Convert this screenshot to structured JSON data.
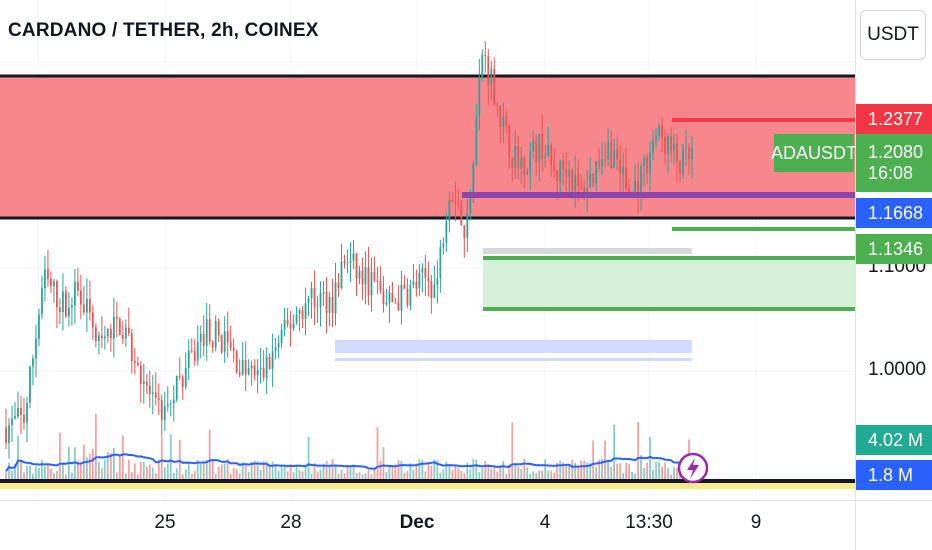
{
  "header": {
    "title": "CARDANO / TETHER, 2h, COINEX",
    "currency": "USDT"
  },
  "colors": {
    "up": "#26a69a",
    "down": "#ef5350",
    "resistance_zone": "#f7878c",
    "support_zone": "#d7f0d8",
    "purple": "#8e44ad",
    "volume_ma": "#2962ff",
    "price_green": "#4caf50",
    "price_red": "#f23645",
    "price_blue": "#2962ff",
    "volume_teal": "#22ab94"
  },
  "price_labels": {
    "top_red": "1.2377",
    "symbol": "ADAUSDT",
    "last": "1.2080",
    "countdown": "16:08",
    "blue": "1.1668",
    "green": "1.1346",
    "volume": "4.02 M",
    "volume_ma": "1.8 M"
  },
  "y_ticks": [
    "1.1000",
    "1.0000"
  ],
  "x_ticks": [
    "25",
    "28",
    "Dec",
    "4",
    "13:30",
    "9"
  ],
  "icons": {
    "lightning": "lightning-icon"
  },
  "chart_data": {
    "type": "candlestick",
    "title": "CARDANO / TETHER, 2h, COINEX",
    "symbol": "ADAUSDT",
    "quote": "USDT",
    "y_scale": "price",
    "y_ticks": [
      1.0,
      1.1
    ],
    "last_price": 1.208,
    "x_ticks": [
      "25",
      "28",
      "Dec",
      "4",
      "13:30",
      "9"
    ],
    "close_path": [
      [
        0,
        0.945
      ],
      [
        15,
        0.955
      ],
      [
        30,
        1.09
      ],
      [
        45,
        1.065
      ],
      [
        60,
        1.078
      ],
      [
        75,
        1.02
      ],
      [
        90,
        1.05
      ],
      [
        105,
        1.01
      ],
      [
        120,
        0.96
      ],
      [
        128,
        0.962
      ],
      [
        140,
        0.99
      ],
      [
        160,
        1.04
      ],
      [
        175,
        1.03
      ],
      [
        190,
        1.0
      ],
      [
        205,
        0.995
      ],
      [
        220,
        1.03
      ],
      [
        235,
        1.06
      ],
      [
        250,
        1.07
      ],
      [
        262,
        1.07
      ],
      [
        272,
        1.11
      ],
      [
        285,
        1.09
      ],
      [
        295,
        1.085
      ],
      [
        305,
        1.065
      ],
      [
        315,
        1.07
      ],
      [
        325,
        1.08
      ],
      [
        338,
        1.09
      ],
      [
        345,
        1.08
      ],
      [
        355,
        1.18
      ],
      [
        362,
        1.17
      ],
      [
        368,
        1.12
      ],
      [
        375,
        1.22
      ],
      [
        382,
        1.31
      ],
      [
        390,
        1.28
      ],
      [
        400,
        1.23
      ],
      [
        410,
        1.2
      ],
      [
        420,
        1.21
      ],
      [
        430,
        1.22
      ],
      [
        440,
        1.19
      ],
      [
        450,
        1.2
      ],
      [
        460,
        1.17
      ],
      [
        470,
        1.19
      ],
      [
        480,
        1.22
      ],
      [
        490,
        1.205
      ],
      [
        500,
        1.17
      ],
      [
        510,
        1.19
      ],
      [
        520,
        1.23
      ],
      [
        530,
        1.22
      ],
      [
        540,
        1.2
      ],
      [
        550,
        1.208
      ]
    ],
    "zones": [
      {
        "type": "resistance",
        "from": 1.1668,
        "to": 1.26
      },
      {
        "type": "support",
        "from": 1.06,
        "to": 1.1346
      },
      {
        "type": "demand",
        "from": 1.025,
        "to": 1.04
      }
    ],
    "levels": [
      1.2377,
      1.1668,
      1.1346
    ],
    "volume": {
      "last": "4.02 M",
      "ma": "1.8 M"
    },
    "grid": true
  }
}
